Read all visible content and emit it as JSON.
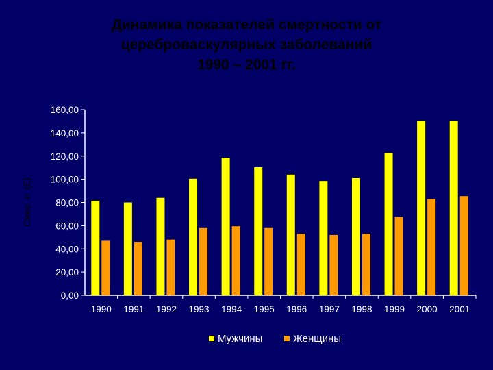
{
  "slide": {
    "title_lines": [
      "Динамика показателей смертности от",
      "цереброваскулярных заболеваний",
      "1990 – 2001 гг."
    ]
  },
  "chart_data": {
    "type": "bar",
    "title": "Динамика показателей смертности от цереброваскулярных заболеваний 1990 – 2001 гг.",
    "ylabel": "Смер. п. (E)",
    "xlabel": "",
    "categories": [
      "1990",
      "1991",
      "1992",
      "1993",
      "1994",
      "1995",
      "1996",
      "1997",
      "1998",
      "1999",
      "2000",
      "2001"
    ],
    "series": [
      {
        "name": "Мужчины",
        "color": "#ffff00",
        "values": [
          81.5,
          80,
          84,
          100.5,
          118.5,
          110.5,
          104,
          98.5,
          101,
          122.5,
          150.5,
          150.5
        ]
      },
      {
        "name": "Женщины",
        "color": "#ff9900",
        "values": [
          47,
          46,
          48,
          58,
          59.5,
          58,
          53,
          52,
          53,
          67.5,
          83,
          85.5
        ]
      }
    ],
    "ylim": [
      0,
      160
    ],
    "yticks": [
      "0,00",
      "20,00",
      "40,00",
      "60,00",
      "80,00",
      "100,00",
      "120,00",
      "140,00",
      "160,00"
    ],
    "ytick_values": [
      0,
      20,
      40,
      60,
      80,
      100,
      120,
      140,
      160
    ],
    "grid": false,
    "legend_position": "bottom"
  }
}
